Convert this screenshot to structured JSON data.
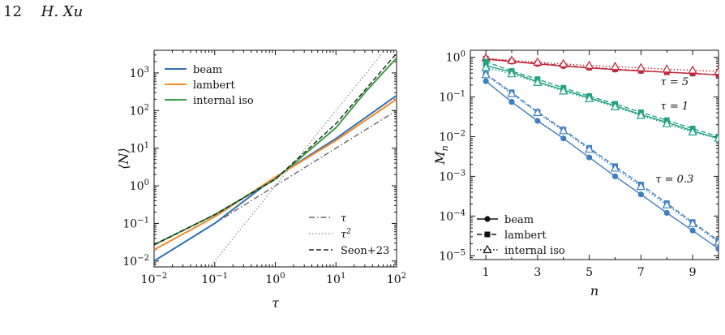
{
  "header": {
    "page_number": "12",
    "author": "H. Xu"
  },
  "chart_data": [
    {
      "type": "line",
      "xlabel": "τ",
      "ylabel": "⟨N⟩",
      "xscale": "log",
      "yscale": "log",
      "xlim": [
        0.01,
        100
      ],
      "ylim": [
        0.007,
        4000
      ],
      "x_ticks": [
        0.01,
        0.1,
        1,
        10,
        100
      ],
      "y_ticks": [
        0.01,
        0.1,
        1,
        10,
        100,
        1000
      ],
      "x_tick_labels": [
        {
          "b": "10",
          "e": "−2"
        },
        {
          "b": "10",
          "e": "−1"
        },
        {
          "b": "10",
          "e": "0"
        },
        {
          "b": "10",
          "e": "1"
        },
        {
          "b": "10",
          "e": "2"
        }
      ],
      "y_tick_labels": [
        {
          "b": "10",
          "e": "−2"
        },
        {
          "b": "10",
          "e": "−1"
        },
        {
          "b": "10",
          "e": "0"
        },
        {
          "b": "10",
          "e": "1"
        },
        {
          "b": "10",
          "e": "2"
        },
        {
          "b": "10",
          "e": "3"
        }
      ],
      "legend_top": {
        "position": "top-left",
        "entries": [
          "beam",
          "lambert",
          "internal iso"
        ]
      },
      "legend_bottom": {
        "position": "bottom-right",
        "entries": [
          "τ",
          "τ²",
          "Seon+23"
        ]
      },
      "series": [
        {
          "name": "beam",
          "color": "#2f70b4",
          "style": "solid",
          "x": [
            0.01,
            0.1,
            1,
            10,
            100
          ],
          "y": [
            0.01,
            0.1,
            1.7,
            18,
            250
          ]
        },
        {
          "name": "lambert",
          "color": "#f28a2c",
          "style": "solid",
          "x": [
            0.01,
            0.1,
            1,
            10,
            100
          ],
          "y": [
            0.02,
            0.15,
            1.7,
            16,
            200
          ]
        },
        {
          "name": "internal iso",
          "color": "#3a9e45",
          "style": "solid",
          "x": [
            0.01,
            0.1,
            1,
            10,
            30,
            100
          ],
          "y": [
            0.027,
            0.17,
            1.5,
            35,
            300,
            2500
          ]
        },
        {
          "name": "Seon+23",
          "color": "#222222",
          "style": "dashed",
          "x": [
            0.01,
            0.1,
            1,
            10,
            100
          ],
          "y": [
            0.027,
            0.17,
            1.5,
            45,
            3300
          ]
        },
        {
          "name": "τ",
          "color": "#666666",
          "style": "dashdot",
          "x": [
            0.01,
            100
          ],
          "y": [
            0.01,
            100
          ]
        },
        {
          "name": "τ²",
          "color": "#999999",
          "style": "dotted",
          "x": [
            0.065,
            60
          ],
          "y": [
            0.0042,
            3600
          ]
        }
      ]
    },
    {
      "type": "line",
      "xlabel": "n",
      "ylabel": "M_n",
      "yscale": "log",
      "xlim": [
        0.4,
        10
      ],
      "ylim": [
        8e-06,
        1.5
      ],
      "x_ticks": [
        1,
        3,
        5,
        7,
        9
      ],
      "y_ticks": [
        1e-05,
        0.0001,
        0.001,
        0.01,
        0.1,
        1
      ],
      "y_tick_labels": [
        {
          "b": "10",
          "e": "−5"
        },
        {
          "b": "10",
          "e": "−4"
        },
        {
          "b": "10",
          "e": "−3"
        },
        {
          "b": "10",
          "e": "−2"
        },
        {
          "b": "10",
          "e": "−1"
        },
        {
          "b": "10",
          "e": "0"
        }
      ],
      "annotations": [
        {
          "text": "τ = 5",
          "x": 8.3,
          "y": 0.2,
          "color": "#c0273c"
        },
        {
          "text": "τ = 1",
          "x": 8.3,
          "y": 0.048,
          "color": "#23a184"
        },
        {
          "text": "τ = 0.3",
          "x": 8.3,
          "y": 0.0007,
          "color": "#3f7ec1"
        }
      ],
      "legend": {
        "position": "bottom-left",
        "entries": [
          "beam",
          "lambert",
          "internal iso"
        ]
      },
      "groups": [
        {
          "tau": "5",
          "color": "#c0273c",
          "x": [
            1,
            2,
            3,
            4,
            5,
            6,
            7,
            8,
            9,
            10
          ],
          "beam": [
            0.9,
            0.78,
            0.68,
            0.6,
            0.54,
            0.49,
            0.45,
            0.42,
            0.39,
            0.36
          ],
          "lambert": [
            0.92,
            0.79,
            0.7,
            0.62,
            0.55,
            0.5,
            0.46,
            0.42,
            0.39,
            0.36
          ],
          "iso": [
            0.95,
            0.83,
            0.75,
            0.68,
            0.62,
            0.58,
            0.54,
            0.5,
            0.47,
            0.44
          ]
        },
        {
          "tau": "1",
          "color": "#23a184",
          "x": [
            1,
            2,
            3,
            4,
            5,
            6,
            7,
            8,
            9,
            10
          ],
          "beam": [
            0.62,
            0.42,
            0.24,
            0.15,
            0.095,
            0.06,
            0.036,
            0.023,
            0.014,
            0.009
          ],
          "lambert": [
            0.78,
            0.45,
            0.28,
            0.17,
            0.105,
            0.067,
            0.041,
            0.026,
            0.016,
            0.01
          ],
          "iso": [
            0.55,
            0.38,
            0.23,
            0.14,
            0.09,
            0.056,
            0.034,
            0.021,
            0.013,
            0.009
          ]
        },
        {
          "tau": "0.3",
          "color": "#3f7ec1",
          "x": [
            1,
            2,
            3,
            4,
            5,
            6,
            7,
            8,
            9,
            10
          ],
          "beam": [
            0.25,
            0.075,
            0.025,
            0.009,
            0.003,
            0.001,
            0.00035,
            0.00012,
            4.3e-05,
            1.5e-05
          ],
          "lambert": [
            0.38,
            0.13,
            0.042,
            0.015,
            0.0052,
            0.0018,
            0.00062,
            0.00021,
            7e-05,
            2.4e-05
          ],
          "iso": [
            0.36,
            0.12,
            0.04,
            0.014,
            0.0048,
            0.0016,
            0.00055,
            0.00019,
            6.4e-05,
            2.2e-05
          ]
        }
      ]
    }
  ]
}
